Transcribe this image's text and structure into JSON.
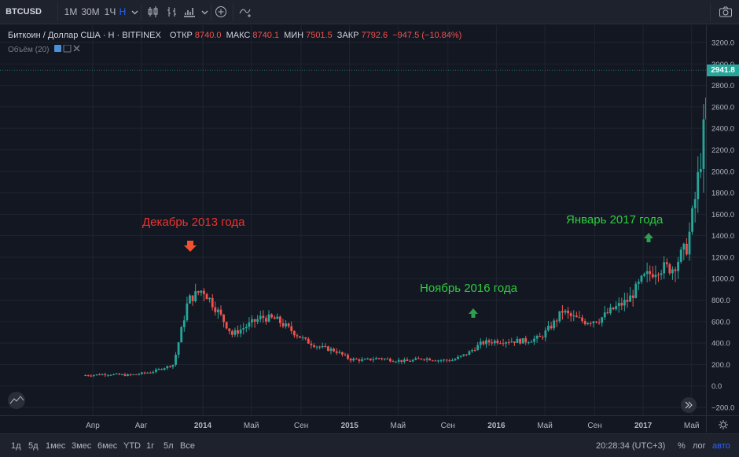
{
  "toolbar": {
    "symbol": "BTCUSD",
    "intervals": [
      "1M",
      "30M",
      "1Ч",
      "Н"
    ],
    "active_interval": "Н",
    "icons": [
      "candle-style-icon",
      "indicators-icon",
      "compare-icon",
      "add-icon",
      "drawing-icon",
      "camera-icon"
    ]
  },
  "legend": {
    "title": "Биткоин / Доллар США · Н · BITFINEX",
    "open_label": "ОТКР",
    "open": "8740.0",
    "high_label": "МАКС",
    "high": "8740.1",
    "low_label": "МИН",
    "low": "7501.5",
    "close_label": "ЗАКР",
    "close": "7792.6",
    "change": "−947.5 (−10.84%)",
    "volume_label": "Объём (20)"
  },
  "price_axis": {
    "labels": [
      "3200.0",
      "3000.0",
      "2800.0",
      "2600.0",
      "2400.0",
      "2200.0",
      "2000.0",
      "1800.0",
      "1600.0",
      "1400.0",
      "1200.0",
      "1000.0",
      "800.0",
      "600.0",
      "400.0",
      "200.0",
      "0.0",
      "−200.0"
    ],
    "last_price": "2941.8"
  },
  "time_axis": {
    "labels": [
      "Апр",
      "Авг",
      "2014",
      "Май",
      "Сен",
      "2015",
      "Май",
      "Сен",
      "2016",
      "Май",
      "Сен",
      "2017",
      "Май"
    ]
  },
  "annotations": {
    "dec2013": "Декабрь 2013 года",
    "nov2016": "Ноябрь 2016 года",
    "jan2017": "Январь 2017 года"
  },
  "bottom": {
    "ranges": [
      "1д",
      "5д",
      "1мес",
      "3мес",
      "6мес",
      "YTD",
      "1г",
      "5л",
      "Все"
    ],
    "clock": "20:28:34 (UTC+3)",
    "percent": "%",
    "log": "лог",
    "auto": "авто"
  },
  "colors": {
    "up": "#26a69a",
    "down": "#ef5350",
    "background": "#131722",
    "annotation_red": "#ef3b2c",
    "annotation_green": "#2ecc40"
  },
  "chart_data": {
    "type": "candlestick",
    "title": "Биткоин / Доллар США · Н · BITFINEX",
    "ylim": [
      -200,
      3200
    ],
    "points": [
      [
        2013.2,
        100
      ],
      [
        2013.35,
        110
      ],
      [
        2013.5,
        100
      ],
      [
        2013.65,
        130
      ],
      [
        2013.8,
        200
      ],
      [
        2013.9,
        800
      ],
      [
        2014.0,
        900
      ],
      [
        2014.1,
        700
      ],
      [
        2014.2,
        480
      ],
      [
        2014.3,
        560
      ],
      [
        2014.4,
        640
      ],
      [
        2014.5,
        620
      ],
      [
        2014.6,
        520
      ],
      [
        2014.7,
        420
      ],
      [
        2014.8,
        360
      ],
      [
        2014.9,
        330
      ],
      [
        2015.0,
        250
      ],
      [
        2015.1,
        240
      ],
      [
        2015.2,
        260
      ],
      [
        2015.3,
        240
      ],
      [
        2015.4,
        230
      ],
      [
        2015.5,
        260
      ],
      [
        2015.6,
        240
      ],
      [
        2015.7,
        240
      ],
      [
        2015.8,
        300
      ],
      [
        2015.9,
        400
      ],
      [
        2016.0,
        420
      ],
      [
        2016.1,
        420
      ],
      [
        2016.2,
        420
      ],
      [
        2016.3,
        450
      ],
      [
        2016.4,
        600
      ],
      [
        2016.45,
        700
      ],
      [
        2016.5,
        650
      ],
      [
        2016.6,
        600
      ],
      [
        2016.7,
        620
      ],
      [
        2016.8,
        720
      ],
      [
        2016.9,
        800
      ],
      [
        2017.0,
        1000
      ],
      [
        2017.1,
        1100
      ],
      [
        2017.2,
        1100
      ],
      [
        2017.3,
        1300
      ],
      [
        2017.35,
        1700
      ],
      [
        2017.4,
        2200
      ],
      [
        2017.45,
        2900
      ]
    ]
  }
}
